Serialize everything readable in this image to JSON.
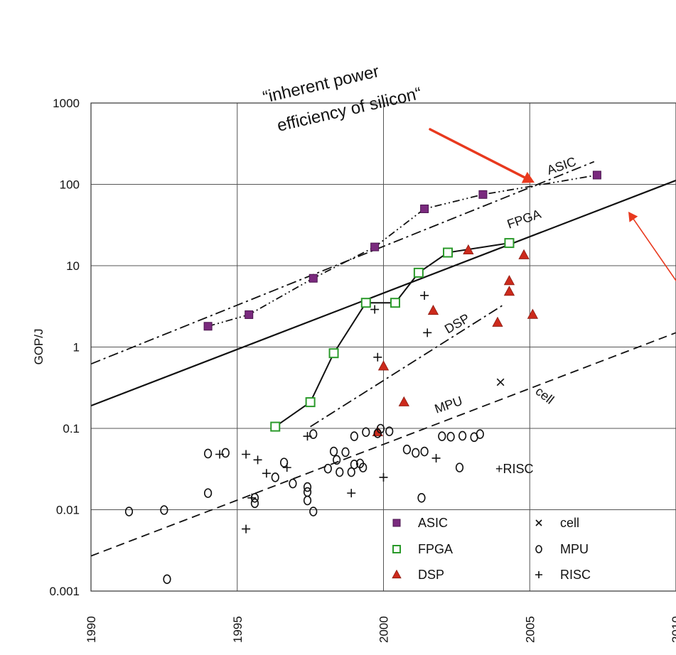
{
  "chart_data": {
    "type": "scatter",
    "ylabel": "GOP/J",
    "xlabel": "",
    "xlim": [
      1990,
      2010
    ],
    "ylim": [
      0.001,
      1000
    ],
    "y_scale": "log",
    "grid": true,
    "x_ticks": [
      "1990",
      "1995",
      "2000",
      "2005",
      "2010"
    ],
    "y_ticks": [
      "0.001",
      "0.01",
      "0.1",
      "1",
      "10",
      "100",
      "1000"
    ],
    "annotation": {
      "line1": "“inherent power",
      "line2": "efficiency of silicon“"
    },
    "line_labels": {
      "asic": "ASIC",
      "fpga": "FPGA",
      "dsp": "DSP",
      "mpu": "MPU",
      "cell": "cell",
      "risc": "+RISC"
    },
    "legend": {
      "position": "bottom-right",
      "entries": [
        {
          "label": "ASIC",
          "marker": "square-filled"
        },
        {
          "label": "cell",
          "marker": "x"
        },
        {
          "label": "FPGA",
          "marker": "square-open"
        },
        {
          "label": "MPU",
          "marker": "circle-open"
        },
        {
          "label": "DSP",
          "marker": "triangle"
        },
        {
          "label": "RISC",
          "marker": "plus"
        }
      ]
    },
    "colors": {
      "asic": "#7a2a7e",
      "fpga": "#2a9a2a",
      "dsp": "#cc2a1c",
      "arrow": "#e8391e",
      "ink": "#111111"
    },
    "series": [
      {
        "name": "ASIC",
        "marker": "square-filled",
        "points": [
          [
            1994.0,
            1.8
          ],
          [
            1995.4,
            2.5
          ],
          [
            1997.6,
            7.0
          ],
          [
            1999.7,
            17
          ],
          [
            2001.4,
            50
          ],
          [
            2003.4,
            75
          ],
          [
            2007.3,
            130
          ]
        ]
      },
      {
        "name": "FPGA",
        "marker": "square-open",
        "points": [
          [
            1996.3,
            0.105
          ],
          [
            1997.5,
            0.21
          ],
          [
            1998.3,
            0.84
          ],
          [
            1999.4,
            3.5
          ],
          [
            2000.4,
            3.5
          ],
          [
            2001.2,
            8.2
          ],
          [
            2002.2,
            14.5
          ],
          [
            2004.3,
            19
          ]
        ]
      },
      {
        "name": "DSP",
        "marker": "triangle",
        "points": [
          [
            2000.0,
            0.58
          ],
          [
            2000.7,
            0.21
          ],
          [
            2001.7,
            2.8
          ],
          [
            2002.9,
            15.5
          ],
          [
            2003.9,
            2.0
          ],
          [
            2004.3,
            6.5
          ],
          [
            2004.3,
            4.8
          ],
          [
            2004.8,
            13.5
          ],
          [
            2005.1,
            2.5
          ],
          [
            1999.8,
            0.09
          ]
        ]
      },
      {
        "name": "MPU",
        "marker": "circle-open",
        "points": [
          [
            1991.3,
            0.0095
          ],
          [
            1992.5,
            0.0099
          ],
          [
            1992.6,
            0.0014
          ],
          [
            1994.0,
            0.016
          ],
          [
            1994.0,
            0.049
          ],
          [
            1994.6,
            0.05
          ],
          [
            1995.6,
            0.014
          ],
          [
            1995.6,
            0.012
          ],
          [
            1996.3,
            0.025
          ],
          [
            1996.6,
            0.038
          ],
          [
            1996.9,
            0.021
          ],
          [
            1997.4,
            0.0165
          ],
          [
            1997.4,
            0.019
          ],
          [
            1997.4,
            0.013
          ],
          [
            1997.6,
            0.0095
          ],
          [
            1997.6,
            0.085
          ],
          [
            1998.1,
            0.032
          ],
          [
            1998.3,
            0.052
          ],
          [
            1998.4,
            0.041
          ],
          [
            1998.5,
            0.029
          ],
          [
            1998.7,
            0.051
          ],
          [
            1998.9,
            0.029
          ],
          [
            1999.0,
            0.036
          ],
          [
            1999.2,
            0.037
          ],
          [
            1999.3,
            0.033
          ],
          [
            1999.0,
            0.08
          ],
          [
            1999.4,
            0.09
          ],
          [
            1999.8,
            0.087
          ],
          [
            1999.9,
            0.099
          ],
          [
            2000.2,
            0.092
          ],
          [
            2000.8,
            0.055
          ],
          [
            2001.1,
            0.05
          ],
          [
            2001.4,
            0.052
          ],
          [
            2001.3,
            0.014
          ],
          [
            2002.0,
            0.08
          ],
          [
            2002.3,
            0.079
          ],
          [
            2002.6,
            0.033
          ],
          [
            2002.7,
            0.081
          ],
          [
            2003.1,
            0.078
          ],
          [
            2003.3,
            0.085
          ]
        ]
      },
      {
        "name": "RISC",
        "marker": "plus",
        "points": [
          [
            1994.4,
            0.048
          ],
          [
            1995.3,
            0.048
          ],
          [
            1995.7,
            0.041
          ],
          [
            1996.0,
            0.028
          ],
          [
            1996.7,
            0.033
          ],
          [
            1997.4,
            0.08
          ],
          [
            1998.9,
            0.016
          ],
          [
            1999.7,
            2.9
          ],
          [
            1999.8,
            0.75
          ],
          [
            2000.0,
            0.025
          ],
          [
            2001.4,
            4.3
          ],
          [
            2001.5,
            1.5
          ],
          [
            2001.8,
            0.043
          ],
          [
            1995.3,
            0.0058
          ],
          [
            1995.5,
            0.014
          ]
        ]
      },
      {
        "name": "cell",
        "marker": "x",
        "points": [
          [
            2004.0,
            0.37
          ]
        ]
      }
    ],
    "lines": [
      {
        "name": "inherent power efficiency of silicon",
        "style": "solid",
        "points": [
          [
            1990,
            0.19
          ],
          [
            2010,
            112
          ]
        ]
      },
      {
        "name": "ASIC trend",
        "style": "dash-dot",
        "points": [
          [
            1990,
            0.62
          ],
          [
            2007.2,
            190
          ]
        ]
      },
      {
        "name": "FPGA trend",
        "style": "dash-dot",
        "points": [
          [
            1997.5,
            0.105
          ],
          [
            2004.1,
            3.3
          ]
        ]
      },
      {
        "name": "MPU trend",
        "style": "dashed",
        "points": [
          [
            1990,
            0.0027
          ],
          [
            2010,
            1.5
          ]
        ]
      }
    ],
    "connectors": [
      {
        "series": "ASIC",
        "style": "dash-dot-dot",
        "points": [
          [
            1994.0,
            1.8
          ],
          [
            1995.4,
            2.5
          ],
          [
            1997.6,
            7.0
          ],
          [
            1999.7,
            17
          ],
          [
            2001.4,
            50
          ],
          [
            2003.4,
            75
          ],
          [
            2007.3,
            130
          ]
        ]
      },
      {
        "series": "FPGA",
        "style": "solid",
        "points": [
          [
            1996.3,
            0.105
          ],
          [
            1997.5,
            0.21
          ],
          [
            1998.3,
            0.84
          ],
          [
            1999.4,
            3.5
          ],
          [
            2000.4,
            3.5
          ],
          [
            2001.2,
            8.2
          ],
          [
            2002.2,
            14.5
          ],
          [
            2004.3,
            19
          ]
        ]
      }
    ]
  }
}
